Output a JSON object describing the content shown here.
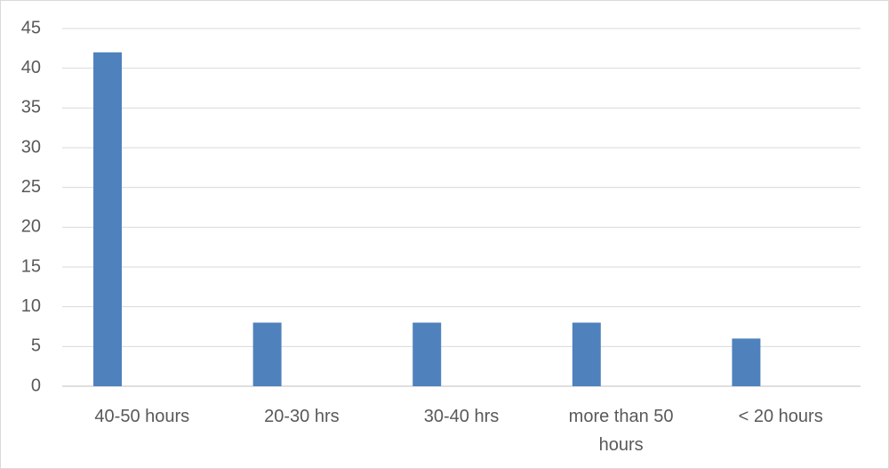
{
  "chart_data": {
    "type": "bar",
    "categories": [
      "40-50 hours",
      "20-30 hrs",
      "30-40 hrs",
      "more than 50 hours",
      "< 20 hours"
    ],
    "values": [
      42,
      8,
      8,
      8,
      6
    ],
    "color": "#4f81bd",
    "ylim": [
      0,
      45
    ],
    "yticks": [
      0,
      5,
      10,
      15,
      20,
      25,
      30,
      35,
      40,
      45
    ],
    "grid": true
  }
}
